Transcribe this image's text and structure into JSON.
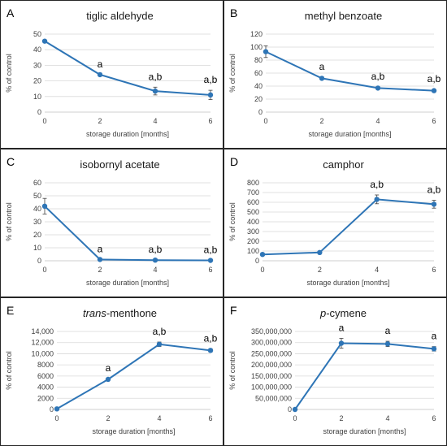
{
  "chart_data": [
    {
      "type": "line",
      "panel_label": "A",
      "title": "tiglic aldehyde",
      "title_italic_prefix": "",
      "title_rest": "tiglic aldehyde",
      "xlabel": "storage duration [months]",
      "ylabel": "% of control",
      "x": [
        0,
        2,
        4,
        6
      ],
      "x_ticks": [
        "0",
        "2",
        "4",
        "6"
      ],
      "values": [
        45.5,
        24,
        13.5,
        11
      ],
      "errors": [
        0,
        0,
        2.5,
        3
      ],
      "ylim": [
        0,
        50
      ],
      "y_ticks": [
        "0",
        "10",
        "20",
        "30",
        "40",
        "50"
      ],
      "y_tick_values": [
        0,
        10,
        20,
        30,
        40,
        50
      ],
      "annotations": [
        "",
        "a",
        "a,b",
        "a,b"
      ],
      "grid": true,
      "color": "#2e75b6"
    },
    {
      "type": "line",
      "panel_label": "B",
      "title": "methyl benzoate",
      "title_italic_prefix": "",
      "title_rest": "methyl benzoate",
      "xlabel": "storage duration [months]",
      "ylabel": "% of control",
      "x": [
        0,
        2,
        4,
        6
      ],
      "x_ticks": [
        "0",
        "2",
        "4",
        "6"
      ],
      "values": [
        93,
        52,
        37,
        33
      ],
      "errors": [
        9,
        2,
        2,
        2
      ],
      "ylim": [
        0,
        120
      ],
      "y_ticks": [
        "0",
        "20",
        "40",
        "60",
        "80",
        "100",
        "120"
      ],
      "y_tick_values": [
        0,
        20,
        40,
        60,
        80,
        100,
        120
      ],
      "annotations": [
        "",
        "a",
        "a,b",
        "a,b"
      ],
      "grid": true,
      "color": "#2e75b6"
    },
    {
      "type": "line",
      "panel_label": "C",
      "title": "isobornyl acetate",
      "title_italic_prefix": "",
      "title_rest": "isobornyl acetate",
      "xlabel": "storage duration [months]",
      "ylabel": "% of control",
      "x": [
        0,
        2,
        4,
        6
      ],
      "x_ticks": [
        "0",
        "2",
        "4",
        "6"
      ],
      "values": [
        42,
        1,
        0.5,
        0.3
      ],
      "errors": [
        6,
        0,
        0,
        0
      ],
      "ylim": [
        0,
        60
      ],
      "y_ticks": [
        "0",
        "10",
        "20",
        "30",
        "40",
        "50",
        "60"
      ],
      "y_tick_values": [
        0,
        10,
        20,
        30,
        40,
        50,
        60
      ],
      "annotations": [
        "",
        "a",
        "a,b",
        "a,b"
      ],
      "grid": true,
      "color": "#2e75b6"
    },
    {
      "type": "line",
      "panel_label": "D",
      "title": "camphor",
      "title_italic_prefix": "",
      "title_rest": "camphor",
      "xlabel": "storage duration [months]",
      "ylabel": "% of control",
      "x": [
        0,
        2,
        4,
        6
      ],
      "x_ticks": [
        "0",
        "2",
        "4",
        "6"
      ],
      "values": [
        65,
        85,
        630,
        580
      ],
      "errors": [
        10,
        10,
        45,
        40
      ],
      "ylim": [
        0,
        800
      ],
      "y_ticks": [
        "0",
        "100",
        "200",
        "300",
        "400",
        "500",
        "600",
        "700",
        "800"
      ],
      "y_tick_values": [
        0,
        100,
        200,
        300,
        400,
        500,
        600,
        700,
        800
      ],
      "annotations": [
        "",
        "",
        "a,b",
        "a,b"
      ],
      "grid": true,
      "color": "#2e75b6"
    },
    {
      "type": "line",
      "panel_label": "E",
      "title": "trans-menthone",
      "title_italic_prefix": "trans",
      "title_rest": "-menthone",
      "xlabel": "storage duration [months]",
      "ylabel": "% of control",
      "x": [
        0,
        2,
        4,
        6
      ],
      "x_ticks": [
        "0",
        "2",
        "4",
        "6"
      ],
      "values": [
        100,
        5400,
        11700,
        10600
      ],
      "errors": [
        0,
        150,
        400,
        300
      ],
      "ylim": [
        0,
        14000
      ],
      "y_ticks": [
        "0",
        "2000",
        "4000",
        "6000",
        "8000",
        "10,000",
        "12,000",
        "14,000"
      ],
      "y_tick_values": [
        0,
        2000,
        4000,
        6000,
        8000,
        10000,
        12000,
        14000
      ],
      "annotations": [
        "",
        "a",
        "a,b",
        "a,b"
      ],
      "grid": true,
      "color": "#2e75b6"
    },
    {
      "type": "line",
      "panel_label": "F",
      "title": "p-cymene",
      "title_italic_prefix": "p",
      "title_rest": "-cymene",
      "xlabel": "storage duration [months]",
      "ylabel": "% of control",
      "x": [
        0,
        2,
        4,
        6
      ],
      "x_ticks": [
        "0",
        "2",
        "4",
        "6"
      ],
      "values": [
        0,
        297000000,
        294000000,
        272000000
      ],
      "errors": [
        0,
        22000000,
        12000000,
        10000000
      ],
      "ylim": [
        0,
        350000000
      ],
      "y_ticks": [
        "0",
        "50,000,000",
        "100,000,000",
        "150,000,000",
        "200,000,000",
        "250,000,000",
        "300,000,000",
        "350,000,000"
      ],
      "y_tick_values": [
        0,
        50000000,
        100000000,
        150000000,
        200000000,
        250000000,
        300000000,
        350000000
      ],
      "annotations": [
        "",
        "a",
        "a",
        "a"
      ],
      "grid": true,
      "color": "#2e75b6"
    }
  ]
}
